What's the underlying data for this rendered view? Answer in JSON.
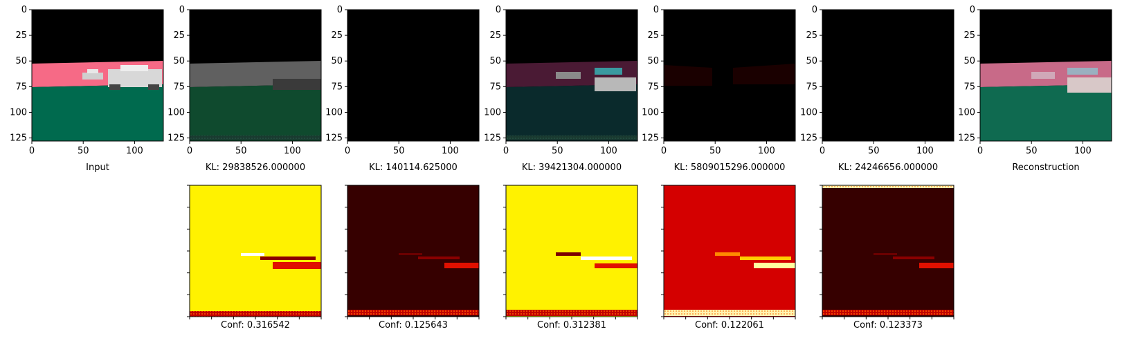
{
  "figure": {
    "input_label": "Input",
    "reconstruction_label": "Reconstruction",
    "top_axis": {
      "xticks": [
        "0",
        "50",
        "100"
      ],
      "yticks": [
        "0",
        "25",
        "50",
        "75",
        "100",
        "125"
      ]
    },
    "components": [
      {
        "kl": "KL: 29838526.000000",
        "conf": "Conf: 0.316542"
      },
      {
        "kl": "KL: 140114.625000",
        "conf": "Conf: 0.125643"
      },
      {
        "kl": "KL: 39421304.000000",
        "conf": "Conf: 0.312381"
      },
      {
        "kl": "KL: 5809015296.000000",
        "conf": "Conf: 0.122061"
      },
      {
        "kl": "KL: 24246656.000000",
        "conf": "Conf: 0.123373"
      }
    ]
  },
  "colors": {
    "road_pink": "#f66a86",
    "ground_green": "#006a4e",
    "sky_black": "#000000",
    "heat_yellow": "#fff200",
    "heat_darkred": "#360000",
    "heat_red": "#d40000"
  }
}
